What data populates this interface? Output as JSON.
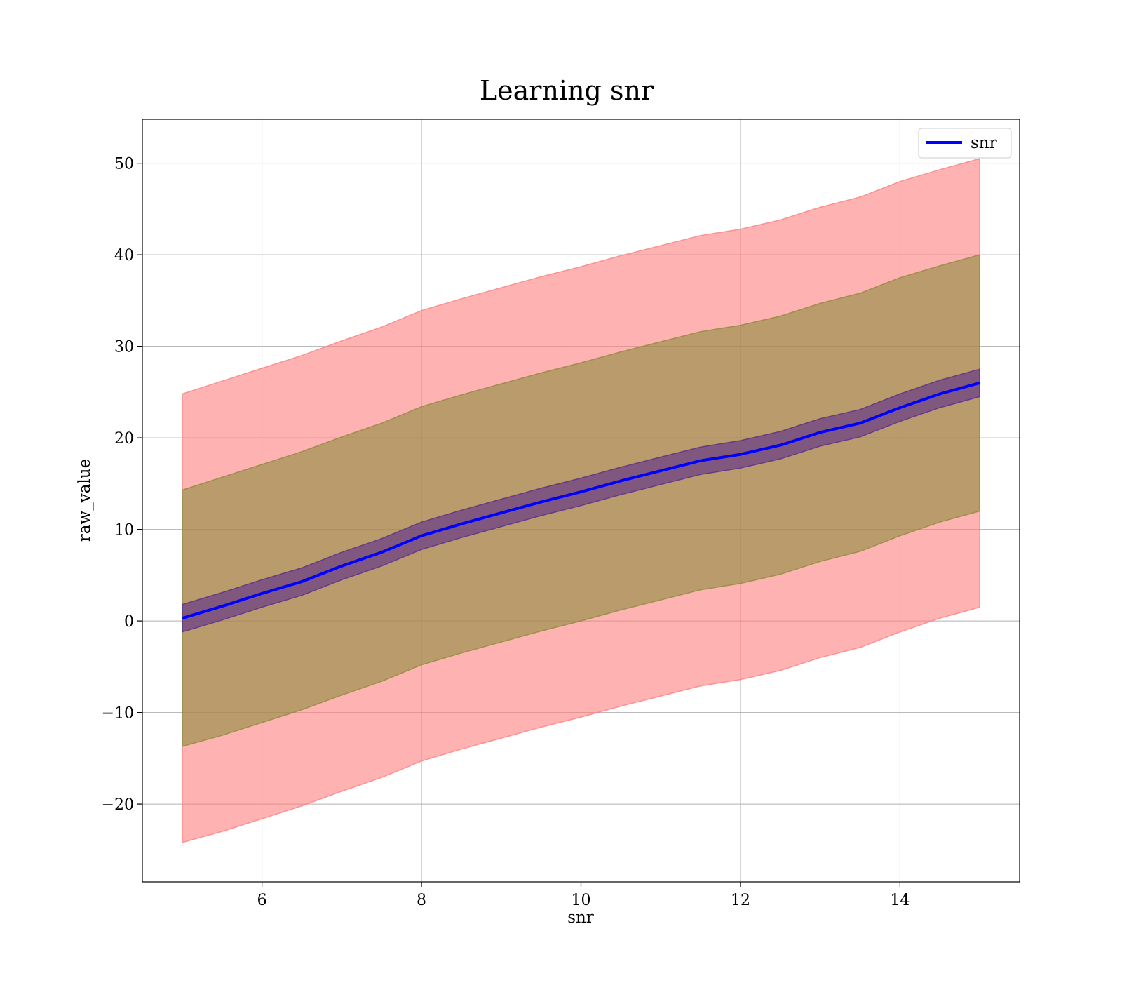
{
  "chart_data": {
    "type": "area",
    "title": "Learning snr",
    "xlabel": "snr",
    "ylabel": "raw_value",
    "xlim": [
      4.5,
      15.5
    ],
    "ylim": [
      -28.5,
      54.8
    ],
    "xticks": [
      6,
      8,
      10,
      12,
      14
    ],
    "yticks": [
      -20,
      -10,
      0,
      10,
      20,
      30,
      40,
      50
    ],
    "ytick_labels": [
      "−20",
      "−10",
      "0",
      "10",
      "20",
      "30",
      "40",
      "50"
    ],
    "grid": true,
    "legend": {
      "position": "top-right",
      "entries": [
        {
          "label": "snr",
          "color": "#0000ff"
        }
      ]
    },
    "series": [
      {
        "name": "snr",
        "x": [
          5,
          5.5,
          6,
          6.5,
          7,
          7.5,
          8,
          8.5,
          9,
          9.5,
          10,
          10.5,
          11,
          11.5,
          12,
          12.5,
          13,
          13.5,
          14,
          14.5,
          15
        ],
        "y": [
          0.3,
          1.6,
          3.0,
          4.3,
          6.0,
          7.5,
          9.3,
          10.6,
          11.8,
          13.0,
          14.1,
          15.3,
          16.4,
          17.5,
          18.2,
          19.2,
          20.6,
          21.6,
          23.3,
          24.8,
          26.0
        ]
      }
    ],
    "bands": [
      {
        "color": "#ff7f7f",
        "x": [
          5,
          5.5,
          6,
          6.5,
          7,
          7.5,
          8,
          8.5,
          9,
          9.5,
          10,
          10.5,
          11,
          11.5,
          12,
          12.5,
          13,
          13.5,
          14,
          14.5,
          15
        ],
        "upper": [
          24.8,
          26.2,
          27.6,
          29.0,
          30.6,
          32.1,
          33.9,
          35.2,
          36.4,
          37.6,
          38.7,
          39.9,
          41.0,
          42.1,
          42.8,
          43.8,
          45.2,
          46.3,
          48.0,
          49.3,
          50.5
        ],
        "lower": [
          -24.2,
          -23.0,
          -21.6,
          -20.2,
          -18.6,
          -17.1,
          -15.3,
          -14.0,
          -12.8,
          -11.6,
          -10.5,
          -9.3,
          -8.2,
          -7.1,
          -6.4,
          -5.4,
          -4.0,
          -2.9,
          -1.2,
          0.3,
          1.5
        ]
      },
      {
        "color": "#8c8c3c",
        "x": [
          5,
          5.5,
          6,
          6.5,
          7,
          7.5,
          8,
          8.5,
          9,
          9.5,
          10,
          10.5,
          11,
          11.5,
          12,
          12.5,
          13,
          13.5,
          14,
          14.5,
          15
        ],
        "upper": [
          14.3,
          15.7,
          17.1,
          18.5,
          20.1,
          21.6,
          23.4,
          24.7,
          25.9,
          27.1,
          28.2,
          29.4,
          30.5,
          31.6,
          32.3,
          33.3,
          34.7,
          35.8,
          37.5,
          38.8,
          40.0
        ],
        "lower": [
          -13.7,
          -12.5,
          -11.1,
          -9.7,
          -8.1,
          -6.6,
          -4.8,
          -3.5,
          -2.3,
          -1.1,
          0.0,
          1.2,
          2.3,
          3.4,
          4.1,
          5.1,
          6.5,
          7.6,
          9.3,
          10.8,
          12.0
        ]
      },
      {
        "color": "#5a2c8c",
        "x": [
          5,
          5.5,
          6,
          6.5,
          7,
          7.5,
          8,
          8.5,
          9,
          9.5,
          10,
          10.5,
          11,
          11.5,
          12,
          12.5,
          13,
          13.5,
          14,
          14.5,
          15
        ],
        "upper": [
          1.8,
          3.1,
          4.5,
          5.8,
          7.5,
          9.0,
          10.8,
          12.1,
          13.3,
          14.5,
          15.6,
          16.8,
          17.9,
          19.0,
          19.7,
          20.7,
          22.1,
          23.1,
          24.8,
          26.3,
          27.5
        ],
        "lower": [
          -1.2,
          0.1,
          1.5,
          2.8,
          4.5,
          6.0,
          7.8,
          9.1,
          10.3,
          11.5,
          12.6,
          13.8,
          14.9,
          16.0,
          16.7,
          17.7,
          19.1,
          20.1,
          21.8,
          23.3,
          24.5
        ]
      }
    ]
  }
}
